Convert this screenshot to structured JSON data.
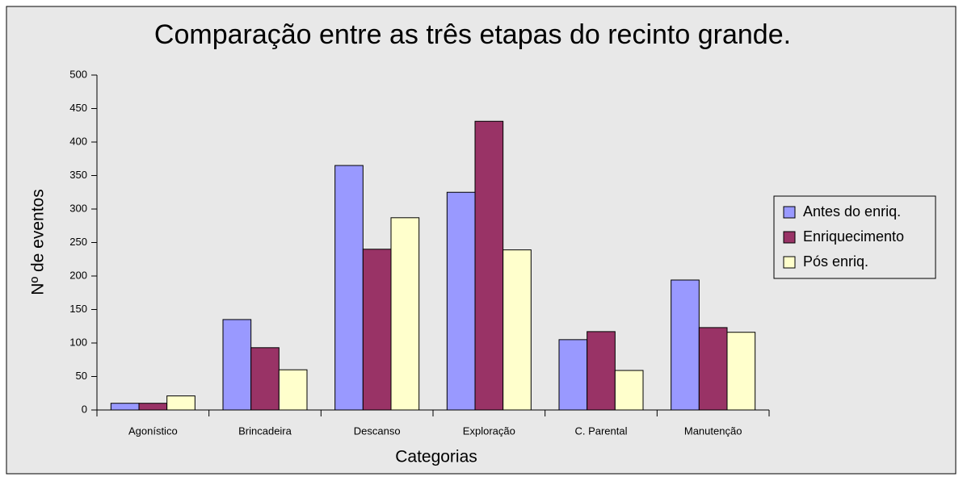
{
  "chart_data": {
    "type": "bar",
    "title": "Comparação entre as três etapas do recinto grande.",
    "x_label": "Categorias",
    "y_label": "Nº de eventos",
    "categories": [
      "Agonístico",
      "Brincadeira",
      "Descanso",
      "Exploração",
      "C. Parental",
      "Manutenção"
    ],
    "series": [
      {
        "name": "Antes do enriq.",
        "color": "#9999ff",
        "values": [
          10,
          135,
          365,
          325,
          105,
          194
        ]
      },
      {
        "name": "Enriquecimento",
        "color": "#993366",
        "values": [
          10,
          93,
          240,
          431,
          117,
          123
        ]
      },
      {
        "name": "Pós enriq.",
        "color": "#ffffcc",
        "values": [
          21,
          60,
          287,
          239,
          59,
          116
        ]
      }
    ],
    "ylim": [
      0,
      500
    ],
    "yticks": [
      0,
      50,
      100,
      150,
      200,
      250,
      300,
      350,
      400,
      450,
      500
    ],
    "grid": false,
    "legend": "right"
  }
}
